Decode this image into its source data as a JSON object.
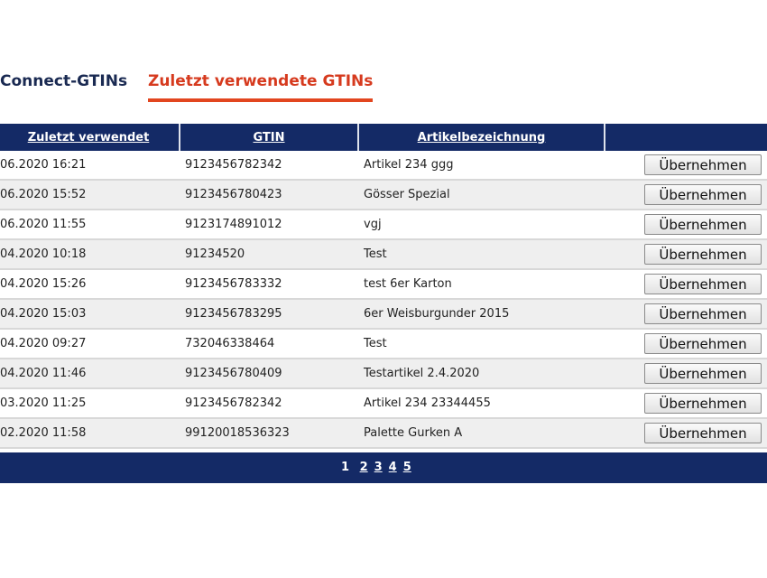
{
  "tabs": [
    {
      "label": "Connect-GTINs",
      "active": false
    },
    {
      "label": "Zuletzt verwendete GTINs",
      "active": true
    }
  ],
  "colors": {
    "header": "#142a66",
    "active_tab": "#d63a1e",
    "tab_text": "#1a2a52"
  },
  "table": {
    "headers": [
      "Zuletzt verwendet",
      "GTIN",
      "Artikelbezeichnung",
      ""
    ],
    "button_label": "Übernehmen",
    "rows": [
      {
        "date": "06.2020 16:21",
        "gtin": "9123456782342",
        "name": "Artikel 234 ggg"
      },
      {
        "date": "06.2020 15:52",
        "gtin": "9123456780423",
        "name": "Gösser Spezial"
      },
      {
        "date": "06.2020 11:55",
        "gtin": "9123174891012",
        "name": "vgj"
      },
      {
        "date": "04.2020 10:18",
        "gtin": "91234520",
        "name": "Test"
      },
      {
        "date": "04.2020 15:26",
        "gtin": "9123456783332",
        "name": "test 6er Karton"
      },
      {
        "date": "04.2020 15:03",
        "gtin": "9123456783295",
        "name": "6er Weisburgunder 2015"
      },
      {
        "date": "04.2020 09:27",
        "gtin": "732046338464",
        "name": "Test"
      },
      {
        "date": "04.2020 11:46",
        "gtin": "9123456780409",
        "name": "Testartikel 2.4.2020"
      },
      {
        "date": "03.2020 11:25",
        "gtin": "9123456782342",
        "name": "Artikel 234 23344455"
      },
      {
        "date": "02.2020 11:58",
        "gtin": "99120018536323",
        "name": "Palette Gurken A"
      }
    ]
  },
  "pagination": {
    "current": "1",
    "pages": [
      "2",
      "3",
      "4",
      "5"
    ]
  }
}
